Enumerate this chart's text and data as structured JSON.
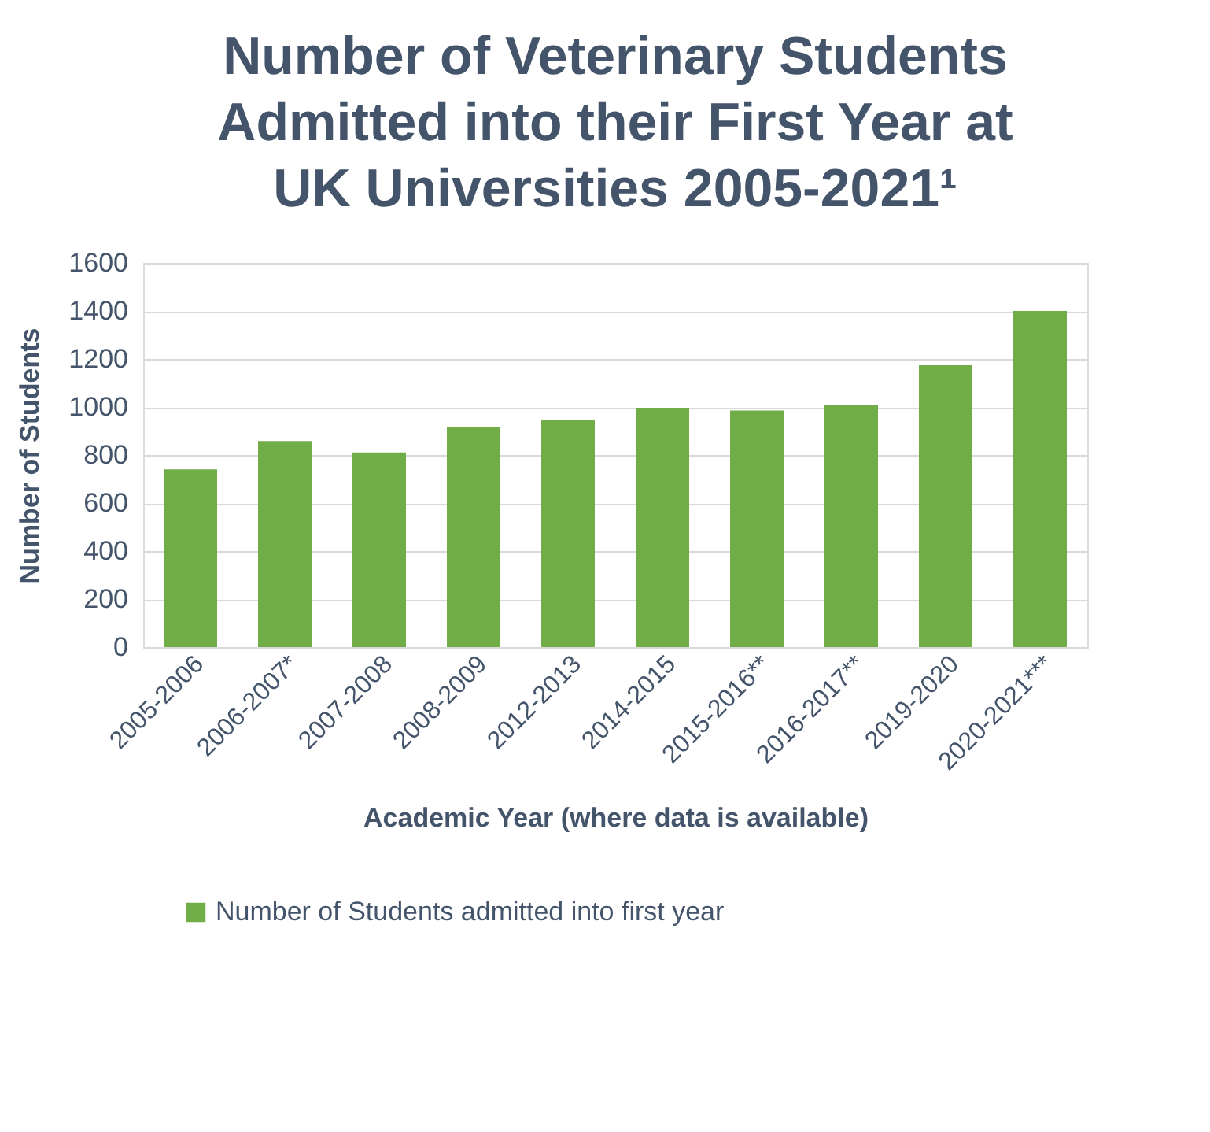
{
  "chart_data": {
    "type": "bar",
    "title": [
      "Number of Veterinary Students",
      "Admitted into their First Year at",
      "UK Universities 2005-2021¹"
    ],
    "xlabel": "Academic Year (where data is available)",
    "ylabel": "Number of Students",
    "categories": [
      "2005-2006",
      "2006-2007*",
      "2007-2008",
      "2008-2009",
      "2012-2013",
      "2014-2015",
      "2015-2016**",
      "2016-2017**",
      "2019-2020",
      "2020-2021***"
    ],
    "series": [
      {
        "name": "Number of Students admitted into first year",
        "color": "#70ad47",
        "values": [
          740,
          858,
          811,
          917,
          944,
          997,
          985,
          1009,
          1174,
          1400
        ]
      }
    ],
    "ylim": [
      0,
      1600
    ],
    "yticks": [
      0,
      200,
      400,
      600,
      800,
      1000,
      1200,
      1400,
      1600
    ],
    "grid": "y",
    "legend": "bottom"
  }
}
